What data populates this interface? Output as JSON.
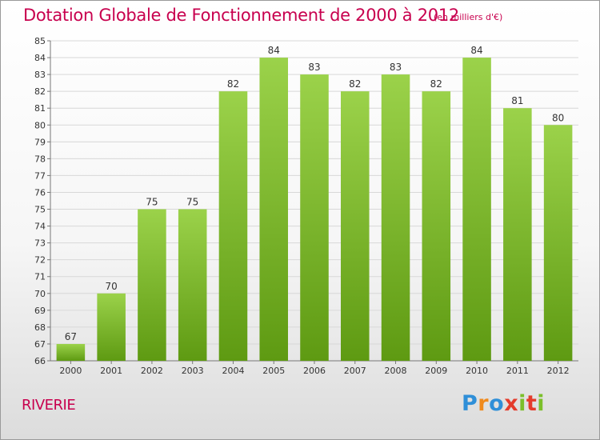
{
  "title": "Dotation Globale de Fonctionnement de 2000 à 2012",
  "unit_note": "(en milliers d'€)",
  "commune": "RIVERIE",
  "logo": {
    "text": "Proxiti",
    "letter_colors": [
      "#2f8fd8",
      "#f08a1c",
      "#2f8fd8",
      "#e43c2c",
      "#7bbf2a",
      "#e43c2c",
      "#7bbf2a"
    ]
  },
  "colors": {
    "title": "#c8004e",
    "bar_light": "#9bd24a",
    "bar_dark": "#5e9a12",
    "grid": "#d8d8d8",
    "axis_text": "#333333"
  },
  "chart_data": {
    "type": "bar",
    "categories": [
      "2000",
      "2001",
      "2002",
      "2003",
      "2004",
      "2005",
      "2006",
      "2007",
      "2008",
      "2009",
      "2010",
      "2011",
      "2012"
    ],
    "values": [
      67,
      70,
      75,
      75,
      82,
      84,
      83,
      82,
      83,
      82,
      84,
      81,
      80
    ],
    "ylim": [
      66,
      85
    ],
    "yticks": [
      66,
      67,
      68,
      69,
      70,
      71,
      72,
      73,
      74,
      75,
      76,
      77,
      78,
      79,
      80,
      81,
      82,
      83,
      84,
      85
    ],
    "grid": true,
    "data_labels": true,
    "xlabel": "",
    "ylabel": ""
  }
}
